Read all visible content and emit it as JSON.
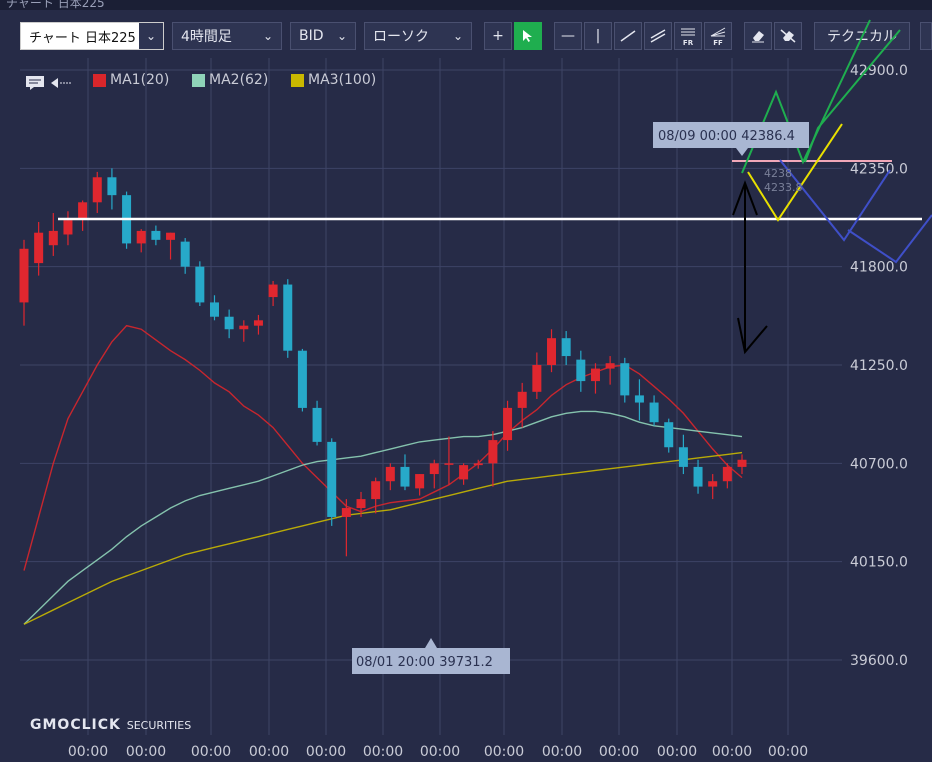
{
  "window": {
    "title": "チャート 日本225"
  },
  "toolbar": {
    "symbol": "チャート 日本225",
    "timeframe": "4時間足",
    "price_type": "BID",
    "chart_type": "ローソク",
    "technical": "テクニカル",
    "fr_label": "FR",
    "ff_label": "FF"
  },
  "legend": [
    {
      "name": "MA1(20)",
      "color": "#d9262b"
    },
    {
      "name": "MA2(62)",
      "color": "#8fd3b8"
    },
    {
      "name": "MA3(100)",
      "color": "#c9b800"
    }
  ],
  "colors": {
    "background": "#262b47",
    "up_candle": "#e0272f",
    "down_candle": "#27a9c9",
    "grid": "#3e4466"
  },
  "logo": {
    "main": "GMOCLICK",
    "sub": "SECURITIES"
  },
  "annotations": {
    "high_label": "08/09 00:00 42386.4",
    "low_label": "08/01 20:00 39731.2",
    "faded_1": "4238",
    "faded_2": "4233.8"
  },
  "chart_data": {
    "type": "candlestick",
    "y_axis": {
      "ticks": [
        "42900.0",
        "42350.0",
        "41800.0",
        "41250.0",
        "40700.0",
        "40150.0",
        "39600.0"
      ],
      "range": [
        39400,
        43000
      ]
    },
    "x_axis": {
      "labels": [
        "00:00",
        "00:00",
        "00:00",
        "00:00",
        "00:00",
        "00:00",
        "00:00",
        "00:00",
        "00:00",
        "00:00",
        "00:00",
        "00:00",
        "00:00"
      ]
    },
    "candles": [
      [
        41600,
        41950,
        41470,
        41900
      ],
      [
        41820,
        42050,
        41750,
        41990
      ],
      [
        41920,
        42100,
        41860,
        42000
      ],
      [
        41980,
        42110,
        41920,
        42060
      ],
      [
        42070,
        42170,
        42000,
        42160
      ],
      [
        42160,
        42330,
        42100,
        42300
      ],
      [
        42300,
        42350,
        42120,
        42200
      ],
      [
        42200,
        42220,
        41900,
        41930
      ],
      [
        41930,
        42010,
        41880,
        42000
      ],
      [
        42000,
        42030,
        41920,
        41950
      ],
      [
        41950,
        41990,
        41840,
        41990
      ],
      [
        41940,
        41960,
        41760,
        41800
      ],
      [
        41800,
        41830,
        41580,
        41600
      ],
      [
        41600,
        41640,
        41500,
        41520
      ],
      [
        41520,
        41560,
        41400,
        41450
      ],
      [
        41450,
        41500,
        41380,
        41470
      ],
      [
        41470,
        41530,
        41420,
        41500
      ],
      [
        41630,
        41720,
        41580,
        41700
      ],
      [
        41700,
        41730,
        41290,
        41330
      ],
      [
        41330,
        41340,
        40990,
        41010
      ],
      [
        41010,
        41050,
        40800,
        40820
      ],
      [
        40820,
        40840,
        40350,
        40400
      ],
      [
        40400,
        40500,
        40180,
        40450
      ],
      [
        40450,
        40540,
        40400,
        40500
      ],
      [
        40500,
        40620,
        40420,
        40600
      ],
      [
        40600,
        40700,
        40550,
        40680
      ],
      [
        40680,
        40750,
        40550,
        40570
      ],
      [
        40560,
        40640,
        40520,
        40640
      ],
      [
        40640,
        40720,
        40560,
        40700
      ],
      [
        40700,
        40850,
        40580,
        40700
      ],
      [
        40610,
        40700,
        40580,
        40690
      ],
      [
        40690,
        40720,
        40670,
        40700
      ],
      [
        40700,
        40880,
        40570,
        40830
      ],
      [
        40830,
        41050,
        40770,
        41010
      ],
      [
        41010,
        41150,
        40900,
        41100
      ],
      [
        41100,
        41320,
        41060,
        41250
      ],
      [
        41250,
        41450,
        41210,
        41400
      ],
      [
        41400,
        41440,
        41250,
        41300
      ],
      [
        41280,
        41330,
        41100,
        41160
      ],
      [
        41160,
        41260,
        41090,
        41230
      ],
      [
        41230,
        41300,
        41140,
        41260
      ],
      [
        41260,
        41290,
        41040,
        41080
      ],
      [
        41080,
        41170,
        40940,
        41040
      ],
      [
        41040,
        41080,
        40910,
        40930
      ],
      [
        40930,
        40950,
        40760,
        40790
      ],
      [
        40790,
        40860,
        40640,
        40680
      ],
      [
        40680,
        40720,
        40530,
        40570
      ],
      [
        40570,
        40640,
        40500,
        40600
      ],
      [
        40600,
        40700,
        40560,
        40680
      ],
      [
        40680,
        40750,
        40640,
        40720
      ]
    ],
    "series": [
      {
        "name": "MA1(20)",
        "values": [
          40100,
          40400,
          40700,
          40950,
          41100,
          41250,
          41380,
          41470,
          41450,
          41390,
          41330,
          41280,
          41220,
          41150,
          41100,
          41020,
          40970,
          40900,
          40800,
          40700,
          40620,
          40540,
          40460,
          40430,
          40460,
          40480,
          40490,
          40500,
          40540,
          40580,
          40640,
          40700,
          40780,
          40870,
          40940,
          41000,
          41080,
          41140,
          41180,
          41210,
          41240,
          41250,
          41200,
          41130,
          41060,
          40980,
          40880,
          40780,
          40690,
          40620
        ]
      },
      {
        "name": "MA2(62)",
        "values": [
          39800,
          39880,
          39960,
          40040,
          40100,
          40160,
          40220,
          40290,
          40350,
          40400,
          40450,
          40490,
          40520,
          40540,
          40560,
          40580,
          40600,
          40630,
          40660,
          40690,
          40710,
          40720,
          40730,
          40740,
          40760,
          40780,
          40800,
          40820,
          40830,
          40840,
          40850,
          40850,
          40860,
          40880,
          40900,
          40930,
          40960,
          40980,
          40990,
          40990,
          40980,
          40960,
          40930,
          40910,
          40900,
          40890,
          40880,
          40870,
          40860,
          40850
        ]
      },
      {
        "name": "MA3(100)",
        "values": [
          39800,
          39840,
          39880,
          39920,
          39960,
          40000,
          40040,
          40070,
          40100,
          40130,
          40160,
          40190,
          40210,
          40230,
          40250,
          40270,
          40290,
          40310,
          40330,
          40350,
          40370,
          40390,
          40410,
          40420,
          40430,
          40440,
          40460,
          40480,
          40500,
          40520,
          40540,
          40560,
          40580,
          40600,
          40610,
          40620,
          40630,
          40640,
          40650,
          40660,
          40670,
          40680,
          40690,
          40700,
          40710,
          40720,
          40730,
          40740,
          40750,
          40760
        ]
      }
    ]
  }
}
